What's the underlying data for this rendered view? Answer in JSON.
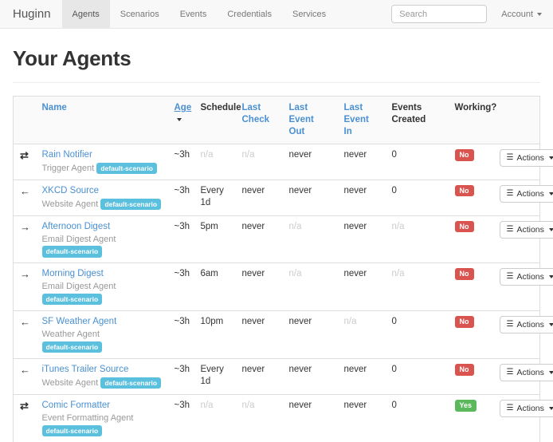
{
  "navbar": {
    "brand": "Huginn",
    "items": [
      "Agents",
      "Scenarios",
      "Events",
      "Credentials",
      "Services"
    ],
    "active_item": "Agents",
    "search": {
      "placeholder": "Search"
    },
    "account": "Account"
  },
  "page": {
    "title": "Your Agents"
  },
  "table": {
    "headers": {
      "name": "Name",
      "age": "Age",
      "schedule": "Schedule",
      "last_check": "Last Check",
      "last_event_out": "Last Event Out",
      "last_event_in": "Last Event In",
      "events_created": "Events Created",
      "working": "Working?"
    },
    "actions_label": "Actions",
    "rows": [
      {
        "direction": "transfer",
        "name": "Rain Notifier",
        "type": "Trigger Agent",
        "scenario": "default-scenario",
        "age": "~3h",
        "schedule": "n/a",
        "last_check": "n/a",
        "last_event_out": "never",
        "last_event_in": "never",
        "events_created": "0",
        "working": "No"
      },
      {
        "direction": "arrow-left",
        "name": "XKCD Source",
        "type": "Website Agent",
        "scenario": "default-scenario",
        "age": "~3h",
        "schedule": "Every 1d",
        "last_check": "never",
        "last_event_out": "never",
        "last_event_in": "never",
        "events_created": "0",
        "working": "No"
      },
      {
        "direction": "arrow-right",
        "name": "Afternoon Digest",
        "type": "Email Digest Agent",
        "scenario": "default-scenario",
        "age": "~3h",
        "schedule": "5pm",
        "last_check": "never",
        "last_event_out": "n/a",
        "last_event_in": "never",
        "events_created": "n/a",
        "working": "No"
      },
      {
        "direction": "arrow-right",
        "name": "Morning Digest",
        "type": "Email Digest Agent",
        "scenario": "default-scenario",
        "age": "~3h",
        "schedule": "6am",
        "last_check": "never",
        "last_event_out": "n/a",
        "last_event_in": "never",
        "events_created": "n/a",
        "working": "No"
      },
      {
        "direction": "arrow-left",
        "name": "SF Weather Agent",
        "type": "Weather Agent",
        "scenario": "default-scenario",
        "age": "~3h",
        "schedule": "10pm",
        "last_check": "never",
        "last_event_out": "never",
        "last_event_in": "n/a",
        "events_created": "0",
        "working": "No"
      },
      {
        "direction": "arrow-left",
        "name": "iTunes Trailer Source",
        "type": "Website Agent",
        "scenario": "default-scenario",
        "age": "~3h",
        "schedule": "Every 1d",
        "last_check": "never",
        "last_event_out": "never",
        "last_event_in": "never",
        "events_created": "0",
        "working": "No"
      },
      {
        "direction": "transfer",
        "name": "Comic Formatter",
        "type": "Event Formatting Agent",
        "scenario": "default-scenario",
        "age": "~3h",
        "schedule": "n/a",
        "last_check": "n/a",
        "last_event_out": "never",
        "last_event_in": "never",
        "events_created": "0",
        "working": "Yes"
      }
    ]
  },
  "icons": {
    "transfer": "⇄",
    "arrow-left": "←",
    "arrow-right": "→",
    "list": "☰"
  },
  "colors": {
    "link": "#4a90d2",
    "badge_scenario": "#5bc0de",
    "working_no": "#d9534f",
    "working_yes": "#5cb85c",
    "navbar_bg": "#f8f8f8",
    "navbar_active_bg": "#e7e7e7"
  }
}
